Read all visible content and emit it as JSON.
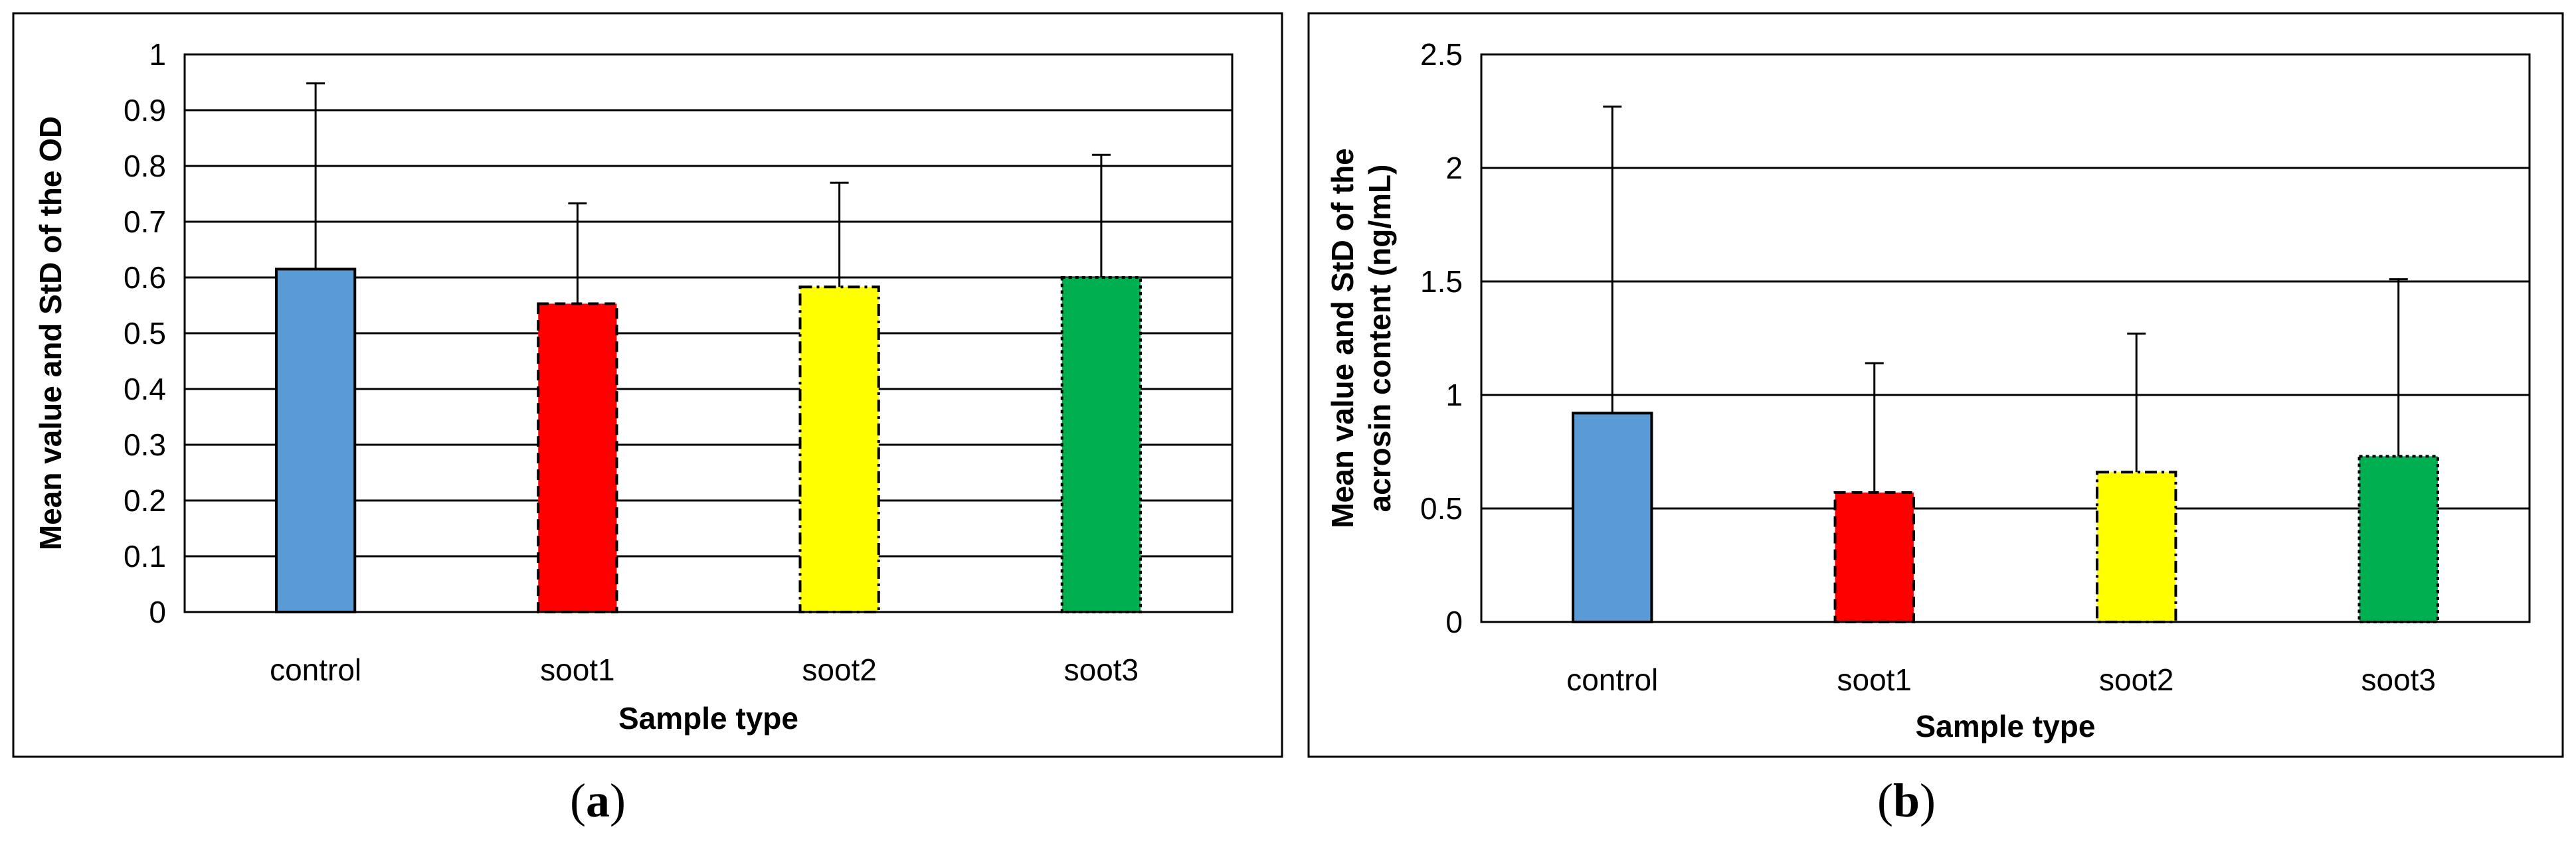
{
  "chart_data": [
    {
      "type": "bar",
      "panel_label": "a",
      "categories": [
        "control",
        "soot1",
        "soot2",
        "soot3"
      ],
      "values": [
        0.615,
        0.553,
        0.583,
        0.6
      ],
      "errors": [
        0.333,
        0.18,
        0.187,
        0.22
      ],
      "colors": [
        "#5B9BD5",
        "#FF0000",
        "#FFFF00",
        "#00B050"
      ],
      "border_styles": [
        "solid",
        "dashed",
        "dashdot",
        "dotted"
      ],
      "title": "",
      "xlabel": "Sample type",
      "ylabel": "Mean value and StD of the OD",
      "ylim": [
        0,
        1
      ],
      "yticks": [
        0,
        0.1,
        0.2,
        0.3,
        0.4,
        0.5,
        0.6,
        0.7,
        0.8,
        0.9,
        1
      ],
      "ytick_labels": [
        "0",
        "0.1",
        "0.2",
        "0.3",
        "0.4",
        "0.5",
        "0.6",
        "0.7",
        "0.8",
        "0.9",
        "1"
      ],
      "grid": true
    },
    {
      "type": "bar",
      "panel_label": "b",
      "categories": [
        "control",
        "soot1",
        "soot2",
        "soot3"
      ],
      "values": [
        0.92,
        0.57,
        0.66,
        0.73
      ],
      "errors": [
        1.35,
        0.57,
        0.61,
        0.78
      ],
      "colors": [
        "#5B9BD5",
        "#FF0000",
        "#FFFF00",
        "#00B050"
      ],
      "border_styles": [
        "solid",
        "dashed",
        "dashdot",
        "dotted"
      ],
      "title": "",
      "xlabel": "Sample type",
      "ylabel_lines": [
        "Mean value and StD of the",
        "acrosin content (ng/mL)"
      ],
      "ylim": [
        0,
        2.5
      ],
      "yticks": [
        0,
        0.5,
        1,
        1.5,
        2,
        2.5
      ],
      "ytick_labels": [
        "0",
        "0.5",
        "1",
        "1.5",
        "2",
        "2.5"
      ],
      "grid": true
    }
  ],
  "panel_labels": {
    "a": {
      "open": "(",
      "letter": "a",
      "close": ")"
    },
    "b": {
      "open": "(",
      "letter": "b",
      "close": ")"
    }
  }
}
